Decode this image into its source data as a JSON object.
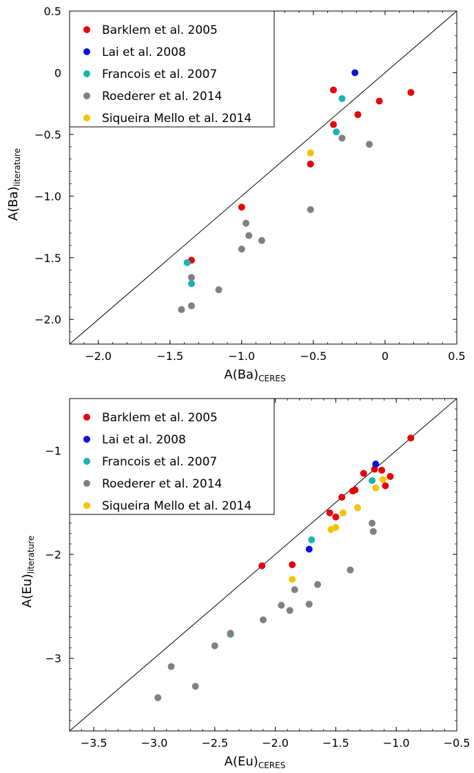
{
  "chart_data": [
    {
      "type": "scatter",
      "xlabel_main": "A(Ba)",
      "xlabel_sub": "CERES",
      "ylabel_main": "A(Ba)",
      "ylabel_sub": "literature",
      "xlim": [
        -2.2,
        0.5
      ],
      "ylim": [
        -2.2,
        0.5
      ],
      "x_ticks": [
        -2.0,
        -1.5,
        -1.0,
        -0.5,
        0,
        0.5
      ],
      "x_tick_labels": [
        "−2.0",
        "−1.5",
        "−1.0",
        "−0.5",
        "0",
        "0.5"
      ],
      "y_ticks": [
        -2.0,
        -1.5,
        -1.0,
        -0.5,
        0,
        0.5
      ],
      "y_tick_labels": [
        "−2.0",
        "−1.5",
        "−1.0",
        "−0.5",
        "0",
        "0.5"
      ],
      "legend_position": "top-left",
      "identity_line": true,
      "series": [
        {
          "name": "Barklem et al. 2005",
          "color": "#e8000b",
          "points": [
            [
              -1.35,
              -1.52
            ],
            [
              -1.0,
              -1.09
            ],
            [
              -0.52,
              -0.74
            ],
            [
              -0.36,
              -0.42
            ],
            [
              -0.36,
              -0.14
            ],
            [
              -0.19,
              -0.34
            ],
            [
              -0.04,
              -0.23
            ],
            [
              0.18,
              -0.16
            ]
          ]
        },
        {
          "name": "Lai et al. 2008",
          "color": "#0a14d8",
          "points": [
            [
              -0.21,
              0.0
            ]
          ]
        },
        {
          "name": "Francois et al. 2007",
          "color": "#1ab3b3",
          "points": [
            [
              -1.38,
              -1.54
            ],
            [
              -1.35,
              -1.71
            ],
            [
              -0.34,
              -0.48
            ],
            [
              -0.3,
              -0.21
            ]
          ]
        },
        {
          "name": "Roederer et al. 2014",
          "color": "#808080",
          "points": [
            [
              -1.42,
              -1.92
            ],
            [
              -1.35,
              -1.66
            ],
            [
              -1.35,
              -1.89
            ],
            [
              -1.16,
              -1.76
            ],
            [
              -0.97,
              -1.22
            ],
            [
              -0.95,
              -1.32
            ],
            [
              -1.0,
              -1.43
            ],
            [
              -0.86,
              -1.36
            ],
            [
              -0.52,
              -1.11
            ],
            [
              -0.3,
              -0.53
            ],
            [
              -0.11,
              -0.58
            ]
          ]
        },
        {
          "name": "Siqueira Mello et al. 2014",
          "color": "#f5c400",
          "points": [
            [
              -0.52,
              -0.65
            ]
          ]
        }
      ]
    },
    {
      "type": "scatter",
      "xlabel_main": "A(Eu)",
      "xlabel_sub": "CERES",
      "ylabel_main": "A(Eu)",
      "ylabel_sub": "literature",
      "xlim": [
        -3.7,
        -0.5
      ],
      "ylim": [
        -3.7,
        -0.5
      ],
      "x_ticks": [
        -3.5,
        -3.0,
        -2.5,
        -2.0,
        -1.5,
        -1.0,
        -0.5
      ],
      "x_tick_labels": [
        "−3.5",
        "−3.0",
        "−2.5",
        "−2.0",
        "−1.5",
        "−1.0",
        "−0.5"
      ],
      "y_ticks": [
        -3,
        -2,
        -1
      ],
      "y_tick_labels": [
        "−3",
        "−2",
        "−1"
      ],
      "legend_position": "top-left",
      "identity_line": true,
      "series": [
        {
          "name": "Barklem et al. 2005",
          "color": "#e8000b",
          "points": [
            [
              -2.11,
              -2.11
            ],
            [
              -1.86,
              -2.1
            ],
            [
              -1.55,
              -1.6
            ],
            [
              -1.5,
              -1.64
            ],
            [
              -1.45,
              -1.45
            ],
            [
              -1.36,
              -1.39
            ],
            [
              -1.34,
              -1.38
            ],
            [
              -1.27,
              -1.22
            ],
            [
              -1.18,
              -1.18
            ],
            [
              -1.12,
              -1.19
            ],
            [
              -1.09,
              -1.34
            ],
            [
              -1.05,
              -1.25
            ],
            [
              -0.88,
              -0.88
            ]
          ]
        },
        {
          "name": "Lai et al. 2008",
          "color": "#0a14d8",
          "points": [
            [
              -1.72,
              -1.95
            ],
            [
              -1.17,
              -1.13
            ]
          ]
        },
        {
          "name": "Francois et al. 2007",
          "color": "#1ab3b3",
          "points": [
            [
              -2.37,
              -2.77
            ],
            [
              -1.7,
              -1.86
            ],
            [
              -1.2,
              -1.29
            ]
          ]
        },
        {
          "name": "Roederer et al. 2014",
          "color": "#808080",
          "points": [
            [
              -2.97,
              -3.38
            ],
            [
              -2.86,
              -3.08
            ],
            [
              -2.66,
              -3.27
            ],
            [
              -2.5,
              -2.88
            ],
            [
              -2.37,
              -2.76
            ],
            [
              -2.1,
              -2.63
            ],
            [
              -1.95,
              -2.49
            ],
            [
              -1.88,
              -2.54
            ],
            [
              -1.84,
              -2.34
            ],
            [
              -1.72,
              -2.48
            ],
            [
              -1.65,
              -2.29
            ],
            [
              -1.38,
              -2.15
            ],
            [
              -1.2,
              -1.7
            ],
            [
              -1.19,
              -1.78
            ]
          ]
        },
        {
          "name": "Siqueira Mello et al. 2014",
          "color": "#f5c400",
          "points": [
            [
              -1.86,
              -2.24
            ],
            [
              -1.54,
              -1.76
            ],
            [
              -1.5,
              -1.74
            ],
            [
              -1.44,
              -1.6
            ],
            [
              -1.32,
              -1.55
            ],
            [
              -1.17,
              -1.36
            ],
            [
              -1.11,
              -1.28
            ]
          ]
        }
      ]
    }
  ]
}
